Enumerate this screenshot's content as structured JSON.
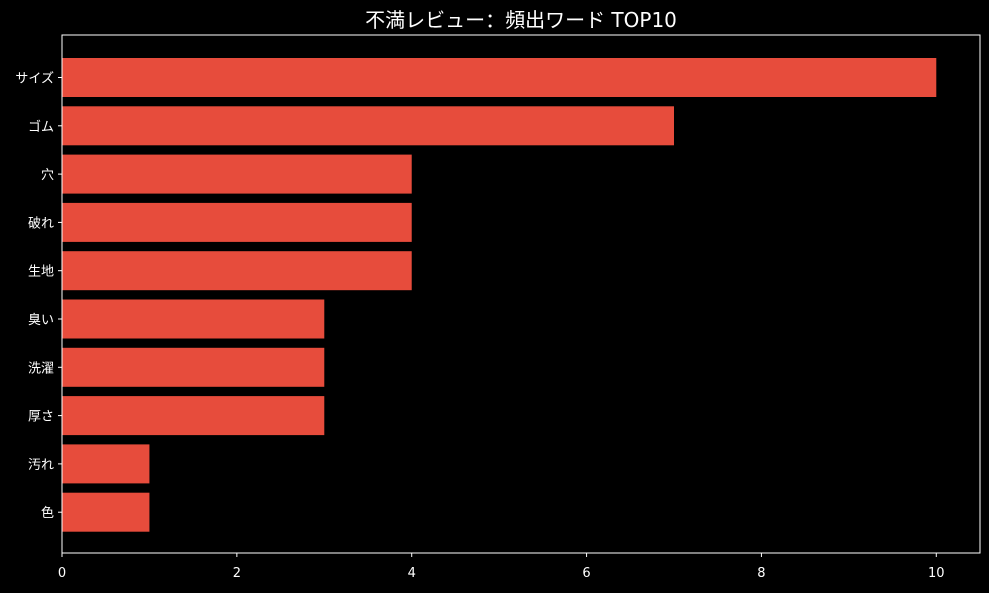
{
  "colors": {
    "background": "#000000",
    "bar": "#e74c3c",
    "axis": "#ffffff",
    "text": "#ffffff"
  },
  "chart_data": {
    "type": "bar",
    "orientation": "horizontal",
    "title": "不満レビュー：頻出ワード TOP10",
    "xlabel": "",
    "ylabel": "",
    "categories": [
      "サイズ",
      "ゴム",
      "穴",
      "破れ",
      "生地",
      "臭い",
      "洗濯",
      "厚さ",
      "汚れ",
      "色"
    ],
    "values": [
      10,
      7,
      4,
      4,
      4,
      3,
      3,
      3,
      1,
      1
    ],
    "xlim": [
      0,
      10.5
    ],
    "xticks": [
      0,
      2,
      4,
      6,
      8,
      10
    ],
    "grid": false,
    "legend": false
  }
}
